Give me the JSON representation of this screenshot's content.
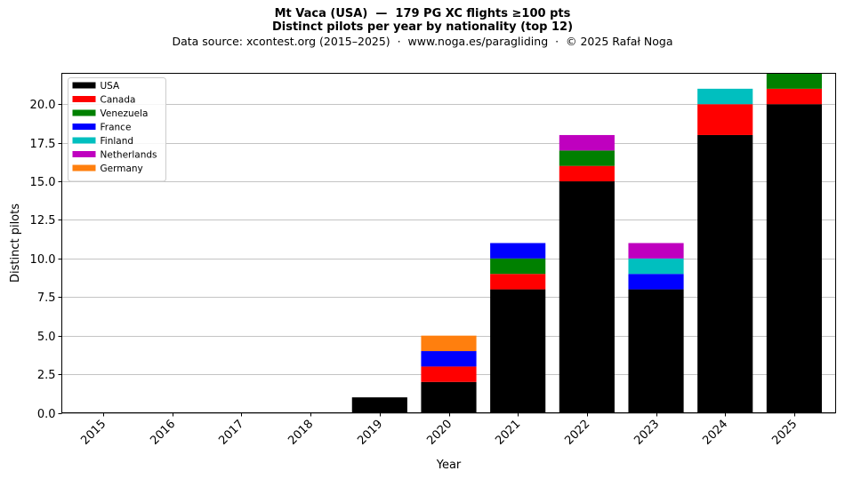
{
  "title": "Mt Vaca (USA)  —  179 PG XC flights ≥100 pts",
  "subtitle": "Distinct pilots per year by nationality (top 12)",
  "source": "Data source: xcontest.org (2015–2025)  ·  www.noga.es/paragliding  ·  © 2025 Rafał Noga",
  "chart_data": {
    "type": "bar",
    "stacked": true,
    "categories": [
      "2015",
      "2016",
      "2017",
      "2018",
      "2019",
      "2020",
      "2021",
      "2022",
      "2023",
      "2024",
      "2025"
    ],
    "series": [
      {
        "name": "USA",
        "color": "#000000",
        "values": [
          0,
          0,
          0,
          0,
          1,
          2,
          8,
          15,
          8,
          18,
          20
        ]
      },
      {
        "name": "Canada",
        "color": "#ff0000",
        "values": [
          0,
          0,
          0,
          0,
          0,
          1,
          1,
          1,
          0,
          2,
          1
        ]
      },
      {
        "name": "Venezuela",
        "color": "#008000",
        "values": [
          0,
          0,
          0,
          0,
          0,
          0,
          1,
          1,
          0,
          0,
          1
        ]
      },
      {
        "name": "France",
        "color": "#0000ff",
        "values": [
          0,
          0,
          0,
          0,
          0,
          1,
          1,
          0,
          1,
          0,
          0
        ]
      },
      {
        "name": "Finland",
        "color": "#00bfbf",
        "values": [
          0,
          0,
          0,
          0,
          0,
          0,
          0,
          0,
          1,
          1,
          0
        ]
      },
      {
        "name": "Netherlands",
        "color": "#bf00bf",
        "values": [
          0,
          0,
          0,
          0,
          0,
          0,
          0,
          1,
          1,
          0,
          0
        ]
      },
      {
        "name": "Germany",
        "color": "#ff7f0e",
        "values": [
          0,
          0,
          0,
          0,
          0,
          1,
          0,
          0,
          0,
          0,
          0
        ]
      }
    ],
    "xlabel": "Year",
    "ylabel": "Distinct pilots",
    "ylim": [
      0,
      22
    ],
    "yticks": [
      "0.0",
      "2.5",
      "5.0",
      "7.5",
      "10.0",
      "12.5",
      "15.0",
      "17.5",
      "20.0"
    ],
    "grid": "y",
    "legend_position": "upper-left"
  }
}
